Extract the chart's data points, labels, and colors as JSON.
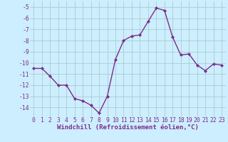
{
  "x": [
    0,
    1,
    2,
    3,
    4,
    5,
    6,
    7,
    8,
    9,
    10,
    11,
    12,
    13,
    14,
    15,
    16,
    17,
    18,
    19,
    20,
    21,
    22,
    23
  ],
  "y": [
    -10.5,
    -10.5,
    -11.2,
    -12.0,
    -12.0,
    -13.2,
    -13.4,
    -13.8,
    -14.5,
    -13.0,
    -9.7,
    -8.0,
    -7.6,
    -7.5,
    -6.3,
    -5.1,
    -5.3,
    -7.7,
    -9.3,
    -9.2,
    -10.2,
    -10.7,
    -10.1,
    -10.2
  ],
  "line_color": "#7b2d8b",
  "marker": "D",
  "markersize": 2.0,
  "linewidth": 1.0,
  "bg_color": "#cceeff",
  "grid_color": "#aacccc",
  "xlabel": "Windchill (Refroidissement éolien,°C)",
  "xlabel_fontsize": 6.5,
  "xtick_labels": [
    "0",
    "1",
    "2",
    "3",
    "4",
    "5",
    "6",
    "7",
    "8",
    "9",
    "10",
    "11",
    "12",
    "13",
    "14",
    "15",
    "16",
    "17",
    "18",
    "19",
    "20",
    "21",
    "22",
    "23"
  ],
  "ytick_values": [
    -5,
    -6,
    -7,
    -8,
    -9,
    -10,
    -11,
    -12,
    -13,
    -14
  ],
  "ylim": [
    -14.8,
    -4.5
  ],
  "xlim": [
    -0.5,
    23.5
  ],
  "tick_fontsize": 5.8,
  "title": ""
}
